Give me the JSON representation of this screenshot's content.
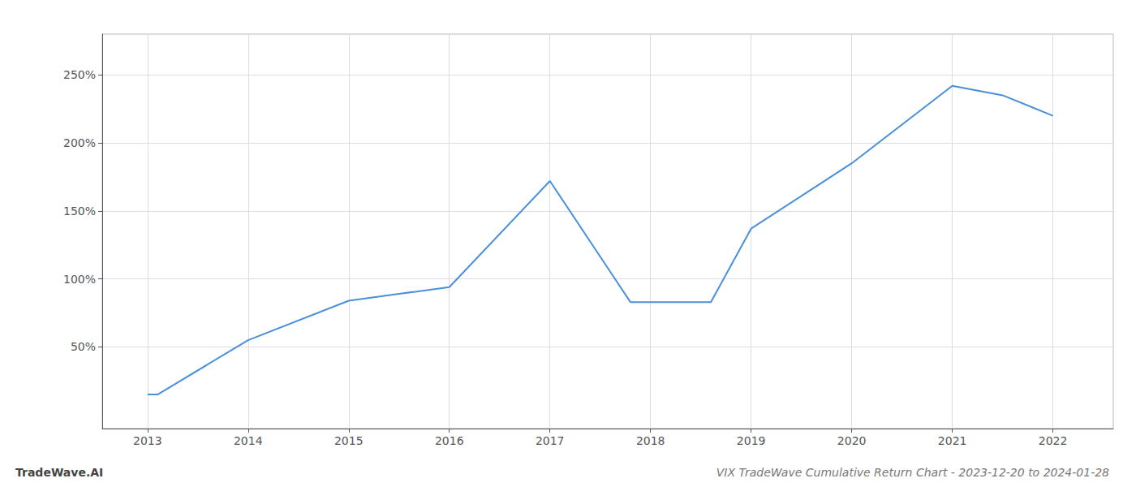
{
  "chart_data": {
    "type": "line",
    "title": "VIX TradeWave Cumulative Return Chart - 2023-12-20 to 2024-01-28",
    "annotations": [
      "TradeWave.AI"
    ],
    "x": [
      2013.0,
      2013.1,
      2014.0,
      2015.0,
      2015.5,
      2016.0,
      2017.0,
      2017.8,
      2018.0,
      2018.6,
      2019.0,
      2020.0,
      2021.0,
      2021.5,
      2022.0
    ],
    "values": [
      15,
      15,
      55,
      84,
      89,
      94,
      172,
      83,
      83,
      83,
      137,
      185,
      242,
      235,
      220
    ],
    "color": "#4a90d9",
    "xlim": [
      2012.55,
      2022.6
    ],
    "ylim": [
      -10,
      280
    ],
    "xticks": [
      2013,
      2014,
      2015,
      2016,
      2017,
      2018,
      2019,
      2020,
      2021,
      2022
    ],
    "yticks": [
      {
        "value": 50,
        "label": "50%"
      },
      {
        "value": 100,
        "label": "100%"
      },
      {
        "value": 150,
        "label": "150%"
      },
      {
        "value": 200,
        "label": "200%"
      },
      {
        "value": 250,
        "label": "250%"
      }
    ],
    "grid": true
  }
}
